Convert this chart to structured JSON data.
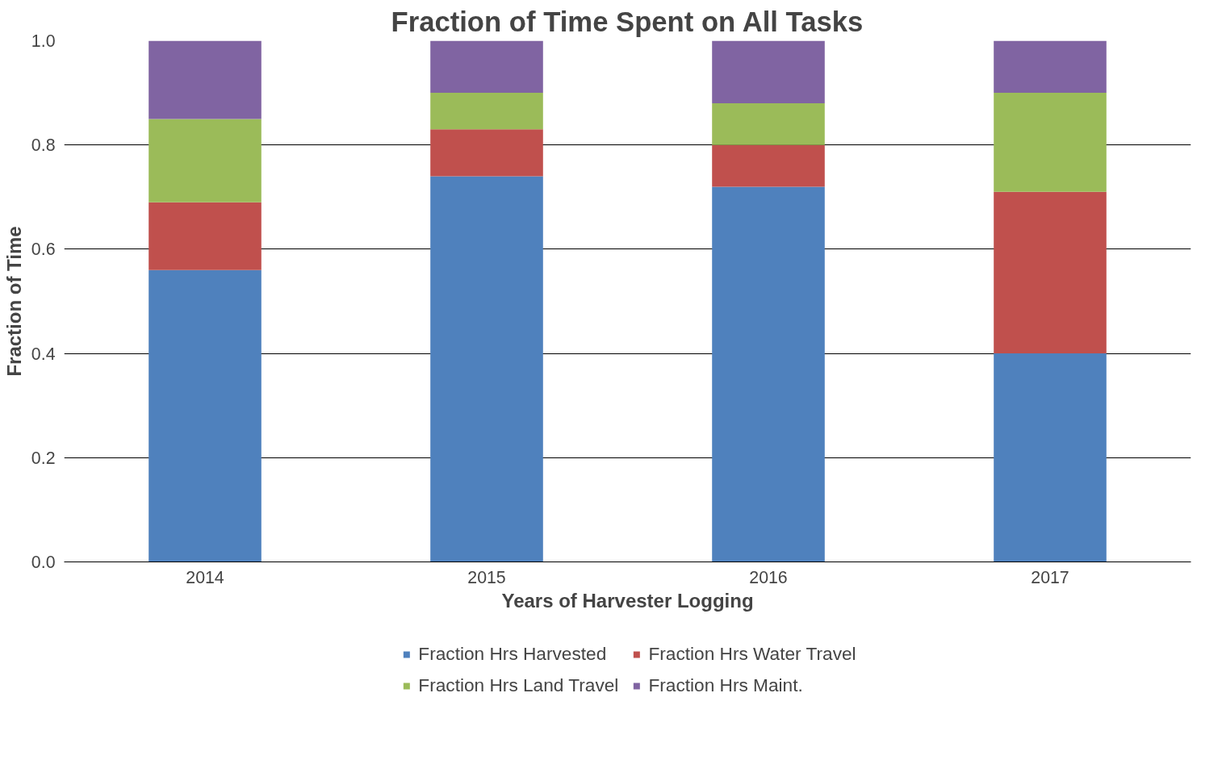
{
  "chart_data": {
    "type": "bar",
    "title": "Fraction of Time Spent on All Tasks",
    "xlabel": "Years of Harvester Logging",
    "ylabel": "Fraction of Time",
    "categories": [
      "2014",
      "2015",
      "2016",
      "2017"
    ],
    "stacked": true,
    "series": [
      {
        "name": "Fraction Hrs Harvested",
        "color": "#4f81bd",
        "values": [
          0.56,
          0.74,
          0.72,
          0.4
        ]
      },
      {
        "name": "Fraction Hrs Water Travel",
        "color": "#c0504d",
        "values": [
          0.13,
          0.09,
          0.08,
          0.31
        ]
      },
      {
        "name": "Fraction Hrs Land Travel",
        "color": "#9bbb59",
        "values": [
          0.16,
          0.07,
          0.08,
          0.19
        ]
      },
      {
        "name": "Fraction Hrs Maint.",
        "color": "#8064a2",
        "values": [
          0.15,
          0.1,
          0.12,
          0.1
        ]
      }
    ],
    "ylim": [
      0,
      1.0
    ],
    "yticks": [
      {
        "value": 0,
        "label": "0.0"
      },
      {
        "value": 0.2,
        "label": "0.2"
      },
      {
        "value": 0.4,
        "label": "0.4"
      },
      {
        "value": 0.6,
        "label": "0.6"
      },
      {
        "value": 0.8,
        "label": "0.8"
      },
      {
        "value": 1.0,
        "label": "1.0"
      }
    ],
    "grid": "y",
    "legend": "bottom"
  }
}
